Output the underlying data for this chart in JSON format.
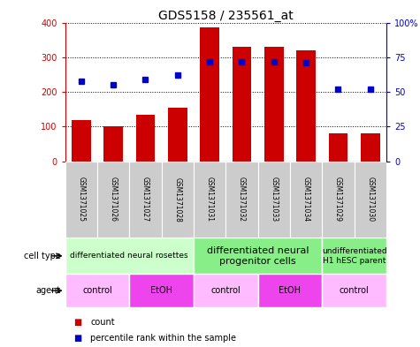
{
  "title": "GDS5158 / 235561_at",
  "samples": [
    "GSM1371025",
    "GSM1371026",
    "GSM1371027",
    "GSM1371028",
    "GSM1371031",
    "GSM1371032",
    "GSM1371033",
    "GSM1371034",
    "GSM1371029",
    "GSM1371030"
  ],
  "counts": [
    120,
    100,
    133,
    155,
    385,
    330,
    330,
    320,
    82,
    82
  ],
  "percentiles": [
    58,
    55,
    59,
    62,
    72,
    72,
    72,
    71,
    52,
    52
  ],
  "ylim_left": [
    0,
    400
  ],
  "ylim_right": [
    0,
    100
  ],
  "yticks_left": [
    0,
    100,
    200,
    300,
    400
  ],
  "yticks_right": [
    0,
    25,
    50,
    75,
    100
  ],
  "bar_color": "#cc0000",
  "dot_color": "#0000cc",
  "sample_bg_color": "#cccccc",
  "cell_groups": [
    {
      "label": "differentiated neural rosettes",
      "start": 0,
      "end": 4,
      "color": "#ccffcc",
      "fontsize": 6.5
    },
    {
      "label": "differentiated neural\nprogenitor cells",
      "start": 4,
      "end": 8,
      "color": "#88ee88",
      "fontsize": 8
    },
    {
      "label": "undifferentiated\nH1 hESC parent",
      "start": 8,
      "end": 10,
      "color": "#88ee88",
      "fontsize": 6.5
    }
  ],
  "agent_groups": [
    {
      "label": "control",
      "start": 0,
      "end": 2,
      "color": "#ffbbff"
    },
    {
      "label": "EtOH",
      "start": 2,
      "end": 4,
      "color": "#ee44ee"
    },
    {
      "label": "control",
      "start": 4,
      "end": 6,
      "color": "#ffbbff"
    },
    {
      "label": "EtOH",
      "start": 6,
      "end": 8,
      "color": "#ee44ee"
    },
    {
      "label": "control",
      "start": 8,
      "end": 10,
      "color": "#ffbbff"
    }
  ]
}
